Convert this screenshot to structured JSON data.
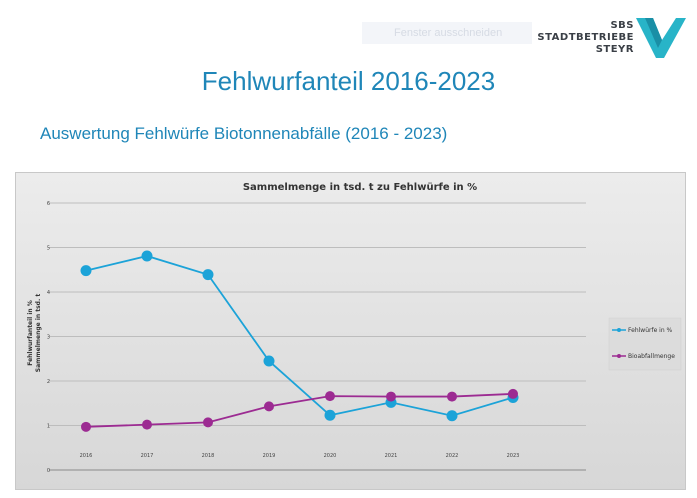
{
  "header": {
    "ghost_text": "Fenster ausschneiden",
    "logo": {
      "line1": "SBS",
      "line2": "STADTBETRIEBE",
      "line3": "STEYR"
    },
    "title": "Fehlwurfanteil 2016-2023",
    "subtitle": "Auswertung Fehlwürfe Biotonnenabfälle (2016 - 2023)"
  },
  "colors": {
    "accent_blue": "#1f86b8",
    "series_fehlwuerfe": "#1ca3d8",
    "series_bioabfall": "#9c2b92",
    "logo_accent": "#28b4c8"
  },
  "chart_data": {
    "type": "line",
    "title": "Sammelmenge in tsd. t zu Fehlwürfe in %",
    "ylabel_line1": "Fehlwurfanteil in %",
    "ylabel_line2": "Sammelmenge in tsd. t",
    "xlabel": "",
    "x": [
      "2016",
      "2017",
      "2018",
      "2019",
      "2020",
      "2021",
      "2022",
      "2023"
    ],
    "ylim": [
      0,
      6
    ],
    "yticks": [
      "0",
      "1",
      "2",
      "3",
      "4",
      "5",
      "6"
    ],
    "grid": true,
    "legend_position": "right",
    "series": [
      {
        "name": "Fehlwürfe in %",
        "values": [
          4.48,
          4.81,
          4.39,
          2.45,
          1.23,
          1.52,
          1.22,
          1.63
        ]
      },
      {
        "name": "Bioabfallmenge",
        "values": [
          0.97,
          1.02,
          1.07,
          1.43,
          1.66,
          1.65,
          1.65,
          1.71
        ]
      }
    ]
  }
}
